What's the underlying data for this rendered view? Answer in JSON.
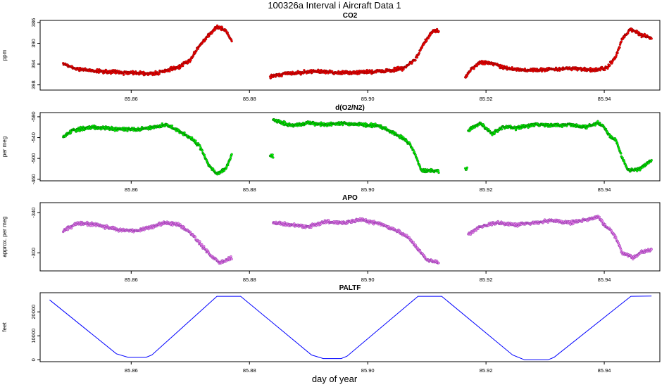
{
  "figure": {
    "title": "100326a   Interval i Aircraft Data 1",
    "xlabel": "day of year"
  },
  "chart_data": [
    {
      "type": "scatter",
      "title": "CO2",
      "ylabel": "ppm",
      "xlim": [
        85.8446,
        85.9494
      ],
      "ylim": [
        385.6,
        399.0
      ],
      "reverse_y": true,
      "yticks": [
        386,
        390,
        394,
        398
      ],
      "xticks": [
        85.86,
        85.88,
        85.9,
        85.92,
        85.94
      ],
      "color": "#ff0000",
      "edge_color": "#7a0000",
      "segments": [
        {
          "x": [
            85.8485,
            85.85,
            85.852,
            85.855,
            85.858,
            85.861,
            85.864,
            85.866,
            85.868,
            85.87,
            85.8715,
            85.873,
            85.8745,
            85.876,
            85.877
          ],
          "y": [
            393.8,
            394.7,
            395.1,
            395.4,
            395.6,
            395.7,
            395.8,
            395.3,
            394.6,
            393.2,
            390.5,
            388.6,
            386.8,
            387.6,
            389.5
          ]
        },
        {
          "x": [
            85.8835,
            85.886,
            85.889,
            85.892,
            85.895,
            85.898,
            85.901,
            85.904,
            85.906,
            85.908,
            85.9095,
            85.911,
            85.912
          ],
          "y": [
            396.5,
            395.8,
            395.6,
            395.4,
            395.7,
            395.6,
            395.5,
            395.2,
            394.8,
            393.2,
            390.0,
            387.6,
            387.5
          ]
        },
        {
          "x": [
            85.9165,
            85.9175,
            85.919,
            85.921,
            85.923,
            85.926,
            85.929,
            85.932,
            85.935,
            85.938,
            85.9405,
            85.942,
            85.943,
            85.9445,
            85.946,
            85.948
          ],
          "y": [
            396.5,
            395.0,
            393.6,
            393.8,
            394.6,
            395.2,
            395.1,
            395.0,
            394.8,
            395.2,
            394.7,
            392.5,
            389.2,
            387.2,
            388.3,
            389.0
          ]
        }
      ]
    },
    {
      "type": "scatter",
      "title": "d(O2/N2)",
      "ylabel": "per meg",
      "xlim": [
        85.8446,
        85.9494
      ],
      "ylim": [
        -588,
        -457
      ],
      "reverse_y": true,
      "yticks": [
        -460,
        -500,
        -540,
        -580
      ],
      "xticks": [
        85.86,
        85.88,
        85.9,
        85.92,
        85.94
      ],
      "color": "#00ff00",
      "edge_color": "#005a00",
      "segments": [
        {
          "x": [
            85.8485,
            85.85,
            85.853,
            85.857,
            85.861,
            85.864,
            85.866,
            85.868,
            85.87,
            85.8715,
            85.873,
            85.8745,
            85.876,
            85.877
          ],
          "y": [
            -540,
            -553,
            -560,
            -557,
            -555,
            -560,
            -565,
            -553,
            -540,
            -525,
            -490,
            -470,
            -480,
            -507
          ]
        },
        {
          "x": [
            85.8835,
            85.884
          ],
          "y": [
            -505,
            -505
          ]
        },
        {
          "x": [
            85.884,
            85.887,
            85.89,
            85.893,
            85.896,
            85.899,
            85.902,
            85.905,
            85.907,
            85.908,
            85.909,
            85.91,
            85.912
          ],
          "y": [
            -574,
            -563,
            -568,
            -565,
            -567,
            -565,
            -563,
            -545,
            -530,
            -508,
            -478,
            -477,
            -476
          ]
        },
        {
          "x": [
            85.9165,
            85.9168
          ],
          "y": [
            -479,
            -479
          ]
        },
        {
          "x": [
            85.917,
            85.919,
            85.921,
            85.923,
            85.925,
            85.928,
            85.931,
            85.934,
            85.937,
            85.939,
            85.94,
            85.941,
            85.942,
            85.943,
            85.944,
            85.946,
            85.948
          ],
          "y": [
            -553,
            -568,
            -548,
            -560,
            -558,
            -565,
            -563,
            -565,
            -560,
            -568,
            -560,
            -542,
            -535,
            -502,
            -478,
            -480,
            -497
          ]
        }
      ]
    },
    {
      "type": "scatter",
      "title": "APO",
      "ylabel": "approx. per meg",
      "xlim": [
        85.8446,
        85.9494
      ],
      "ylim": [
        -350,
        -282
      ],
      "reverse_y": true,
      "yticks": [
        -300,
        -340
      ],
      "xticks": [
        85.86,
        85.88,
        85.9,
        85.92,
        85.94
      ],
      "color": "#ee82ee",
      "edge_color": "#7b2b9a",
      "segments": [
        {
          "x": [
            85.8485,
            85.851,
            85.854,
            85.858,
            85.861,
            85.864,
            85.866,
            85.868,
            85.87,
            85.872,
            85.8735,
            85.875,
            85.877
          ],
          "y": [
            -322,
            -330,
            -328,
            -323,
            -322,
            -327,
            -330,
            -328,
            -320,
            -307,
            -297,
            -290,
            -295
          ]
        },
        {
          "x": [
            85.884,
            85.887,
            85.89,
            85.893,
            85.896,
            85.899,
            85.902,
            85.905,
            85.907,
            85.909,
            85.91,
            85.912
          ],
          "y": [
            -330,
            -328,
            -326,
            -331,
            -330,
            -333,
            -329,
            -322,
            -315,
            -300,
            -293,
            -290
          ]
        },
        {
          "x": [
            85.917,
            85.919,
            85.922,
            85.925,
            85.928,
            85.931,
            85.934,
            85.937,
            85.939,
            85.94,
            85.941,
            85.942,
            85.943,
            85.945,
            85.946,
            85.948
          ],
          "y": [
            -318,
            -326,
            -330,
            -328,
            -330,
            -332,
            -330,
            -333,
            -336,
            -328,
            -323,
            -315,
            -300,
            -295,
            -300,
            -303
          ]
        }
      ]
    },
    {
      "type": "line",
      "title": "PALTF",
      "ylabel": "feet",
      "xlim": [
        85.8446,
        85.9494
      ],
      "ylim": [
        -800,
        28000
      ],
      "reverse_y": false,
      "yticks": [
        0,
        10000,
        20000
      ],
      "xticks": [
        85.86,
        85.88,
        85.9,
        85.92,
        85.94
      ],
      "color": "#0000ff",
      "x": [
        85.8462,
        85.8575,
        85.8595,
        85.8625,
        85.8635,
        85.8745,
        85.8785,
        85.8905,
        85.8925,
        85.8955,
        85.8965,
        85.9085,
        85.9125,
        85.9245,
        85.9265,
        85.9305,
        85.9315,
        85.9445,
        85.948
      ],
      "y": [
        25000,
        2500,
        1000,
        1000,
        2000,
        26500,
        26500,
        2000,
        500,
        500,
        1500,
        26500,
        26500,
        2000,
        0,
        0,
        1000,
        26500,
        26600
      ]
    }
  ]
}
